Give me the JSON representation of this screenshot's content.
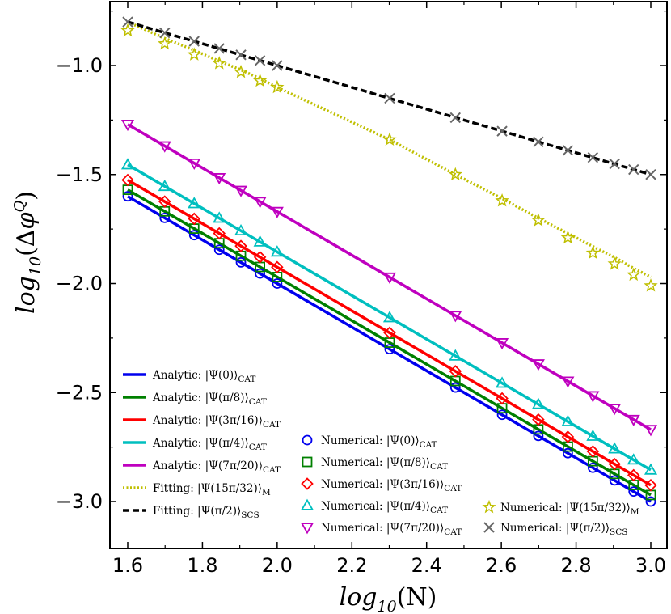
{
  "chart_data": {
    "type": "line",
    "title": "",
    "xlabel": "log10(N)",
    "ylabel": "log10(Δφ^Q)",
    "xlim": [
      1.55,
      3.05
    ],
    "ylim": [
      -3.25,
      -0.7
    ],
    "xticks": [
      1.6,
      1.8,
      2.0,
      2.2,
      2.4,
      2.6,
      2.8,
      3.0
    ],
    "xtick_labels": [
      "1.6",
      "1.8",
      "2.0",
      "2.2",
      "2.4",
      "2.6",
      "2.8",
      "3.0"
    ],
    "yticks": [
      -1.0,
      -1.5,
      -2.0,
      -2.5,
      -3.0
    ],
    "ytick_labels": [
      "−1.0",
      "−1.5",
      "−2.0",
      "−2.5",
      "−3.0"
    ],
    "grid": false,
    "x_points": [
      1.6,
      1.699,
      1.778,
      1.845,
      1.903,
      1.954,
      2.0,
      2.301,
      2.477,
      2.602,
      2.699,
      2.778,
      2.845,
      2.903,
      2.954,
      3.0
    ],
    "series": [
      {
        "name": "Analytic: |Ψ(0)⟩CAT",
        "kind": "line",
        "style": "solid",
        "color": "#0000ee",
        "x": [
          1.6,
          3.0
        ],
        "y": [
          -1.6,
          -3.0
        ]
      },
      {
        "name": "Analytic: |Ψ(π/8)⟩CAT",
        "kind": "line",
        "style": "solid",
        "color": "#008000",
        "x": [
          1.6,
          3.0
        ],
        "y": [
          -1.57,
          -2.97
        ]
      },
      {
        "name": "Analytic: |Ψ(3π/16)⟩CAT",
        "kind": "line",
        "style": "solid",
        "color": "#ff0000",
        "x": [
          1.6,
          3.0
        ],
        "y": [
          -1.525,
          -2.925
        ]
      },
      {
        "name": "Analytic: |Ψ(π/4)⟩CAT",
        "kind": "line",
        "style": "solid",
        "color": "#00bfbf",
        "x": [
          1.6,
          3.0
        ],
        "y": [
          -1.455,
          -2.855
        ]
      },
      {
        "name": "Analytic: |Ψ(7π/20)⟩CAT",
        "kind": "line",
        "style": "solid",
        "color": "#bf00bf",
        "x": [
          1.6,
          3.0
        ],
        "y": [
          -1.27,
          -2.67
        ]
      },
      {
        "name": "Fitting: |Ψ(15π/32)⟩M",
        "kind": "line",
        "style": "dotted",
        "color": "#bfbf00",
        "x": [
          1.6,
          1.699,
          1.778,
          1.845,
          1.903,
          1.954,
          2.0,
          2.301,
          2.477,
          2.602,
          2.699,
          2.778,
          2.845,
          2.903,
          2.954,
          3.0
        ],
        "y": [
          -0.8,
          -0.875,
          -0.93,
          -0.98,
          -1.02,
          -1.06,
          -1.1,
          -1.34,
          -1.5,
          -1.61,
          -1.7,
          -1.77,
          -1.83,
          -1.88,
          -1.93,
          -1.97
        ]
      },
      {
        "name": "Fitting: |Ψ(π/2)⟩SCS",
        "kind": "line",
        "style": "dashed",
        "color": "#000000",
        "x": [
          1.6,
          3.0
        ],
        "y": [
          -0.8,
          -1.5
        ]
      },
      {
        "name": "Numerical: |Ψ(0)⟩CAT",
        "kind": "marker",
        "marker": "circle",
        "color": "#0000ee",
        "x": [
          1.6,
          1.699,
          1.778,
          1.845,
          1.903,
          1.954,
          2.0,
          2.301,
          2.477,
          2.602,
          2.699,
          2.778,
          2.845,
          2.903,
          2.954,
          3.0
        ],
        "y": [
          -1.6,
          -1.699,
          -1.778,
          -1.845,
          -1.903,
          -1.954,
          -2.0,
          -2.301,
          -2.477,
          -2.602,
          -2.699,
          -2.778,
          -2.845,
          -2.903,
          -2.954,
          -3.0
        ]
      },
      {
        "name": "Numerical: |Ψ(π/8)⟩CAT",
        "kind": "marker",
        "marker": "square",
        "color": "#008000",
        "x": [
          1.6,
          1.699,
          1.778,
          1.845,
          1.903,
          1.954,
          2.0,
          2.301,
          2.477,
          2.602,
          2.699,
          2.778,
          2.845,
          2.903,
          2.954,
          3.0
        ],
        "y": [
          -1.57,
          -1.669,
          -1.748,
          -1.815,
          -1.873,
          -1.924,
          -1.97,
          -2.271,
          -2.447,
          -2.572,
          -2.669,
          -2.748,
          -2.815,
          -2.873,
          -2.924,
          -2.97
        ]
      },
      {
        "name": "Numerical: |Ψ(3π/16)⟩CAT",
        "kind": "marker",
        "marker": "diamond",
        "color": "#ff0000",
        "x": [
          1.6,
          1.699,
          1.778,
          1.845,
          1.903,
          1.954,
          2.0,
          2.301,
          2.477,
          2.602,
          2.699,
          2.778,
          2.845,
          2.903,
          2.954,
          3.0
        ],
        "y": [
          -1.525,
          -1.624,
          -1.703,
          -1.77,
          -1.828,
          -1.879,
          -1.925,
          -2.226,
          -2.402,
          -2.527,
          -2.624,
          -2.703,
          -2.77,
          -2.828,
          -2.879,
          -2.925
        ]
      },
      {
        "name": "Numerical: |Ψ(π/4)⟩CAT",
        "kind": "marker",
        "marker": "triangle-up",
        "color": "#00bfbf",
        "x": [
          1.6,
          1.699,
          1.778,
          1.845,
          1.903,
          1.954,
          2.0,
          2.301,
          2.477,
          2.602,
          2.699,
          2.778,
          2.845,
          2.903,
          2.954,
          3.0
        ],
        "y": [
          -1.455,
          -1.554,
          -1.633,
          -1.7,
          -1.758,
          -1.809,
          -1.855,
          -2.156,
          -2.332,
          -2.457,
          -2.554,
          -2.633,
          -2.7,
          -2.758,
          -2.809,
          -2.855
        ]
      },
      {
        "name": "Numerical: |Ψ(7π/20)⟩CAT",
        "kind": "marker",
        "marker": "triangle-down",
        "color": "#bf00bf",
        "x": [
          1.6,
          1.699,
          1.778,
          1.845,
          1.903,
          1.954,
          2.0,
          2.301,
          2.477,
          2.602,
          2.699,
          2.778,
          2.845,
          2.903,
          2.954,
          3.0
        ],
        "y": [
          -1.27,
          -1.369,
          -1.448,
          -1.515,
          -1.573,
          -1.624,
          -1.67,
          -1.971,
          -2.147,
          -2.272,
          -2.369,
          -2.448,
          -2.515,
          -2.573,
          -2.624,
          -2.67
        ]
      },
      {
        "name": "Numerical: |Ψ(15π/32)⟩M",
        "kind": "marker",
        "marker": "star",
        "color": "#bfbf00",
        "x": [
          1.6,
          1.699,
          1.778,
          1.845,
          1.903,
          1.954,
          2.0,
          2.301,
          2.477,
          2.602,
          2.699,
          2.778,
          2.845,
          2.903,
          2.954,
          3.0
        ],
        "y": [
          -0.84,
          -0.9,
          -0.95,
          -0.99,
          -1.03,
          -1.07,
          -1.1,
          -1.34,
          -1.5,
          -1.62,
          -1.71,
          -1.79,
          -1.86,
          -1.91,
          -1.96,
          -2.01
        ]
      },
      {
        "name": "Numerical: |Ψ(π/2)⟩SCS",
        "kind": "marker",
        "marker": "x",
        "color": "#666666",
        "x": [
          1.6,
          1.699,
          1.778,
          1.845,
          1.903,
          1.954,
          2.0,
          2.301,
          2.477,
          2.602,
          2.699,
          2.778,
          2.845,
          2.903,
          2.954,
          3.0
        ],
        "y": [
          -0.8,
          -0.85,
          -0.889,
          -0.922,
          -0.951,
          -0.977,
          -1.0,
          -1.15,
          -1.239,
          -1.301,
          -1.35,
          -1.389,
          -1.422,
          -1.451,
          -1.477,
          -1.5
        ]
      }
    ],
    "legend": {
      "left_column": [
        {
          "prefix": "Analytic: |Ψ(0)⟩",
          "sub": "CAT",
          "series": 0
        },
        {
          "prefix": "Analytic: |Ψ(π/8)⟩",
          "sub": "CAT",
          "series": 1
        },
        {
          "prefix": "Analytic: |Ψ(3π/16)⟩",
          "sub": "CAT",
          "series": 2
        },
        {
          "prefix": "Analytic: |Ψ(π/4)⟩",
          "sub": "CAT",
          "series": 3
        },
        {
          "prefix": "Analytic: |Ψ(7π/20)⟩",
          "sub": "CAT",
          "series": 4
        },
        {
          "prefix": "Fitting: |Ψ(15π/32)⟩",
          "sub": "M",
          "series": 5
        },
        {
          "prefix": "Fitting: |Ψ(π/2)⟩",
          "sub": "SCS",
          "series": 6
        }
      ],
      "middle_column": [
        {
          "prefix": "Numerical: |Ψ(0)⟩",
          "sub": "CAT",
          "series": 7
        },
        {
          "prefix": "Numerical: |Ψ(π/8)⟩",
          "sub": "CAT",
          "series": 8
        },
        {
          "prefix": "Numerical: |Ψ(3π/16)⟩",
          "sub": "CAT",
          "series": 9
        },
        {
          "prefix": "Numerical: |Ψ(π/4)⟩",
          "sub": "CAT",
          "series": 10
        },
        {
          "prefix": "Numerical: |Ψ(7π/20)⟩",
          "sub": "CAT",
          "series": 11
        }
      ],
      "right_column": [
        {
          "prefix": "Numerical: |Ψ(15π/32)⟩",
          "sub": "M",
          "series": 12
        },
        {
          "prefix": "Numerical: |Ψ(π/2)⟩",
          "sub": "SCS",
          "series": 13
        }
      ]
    }
  }
}
